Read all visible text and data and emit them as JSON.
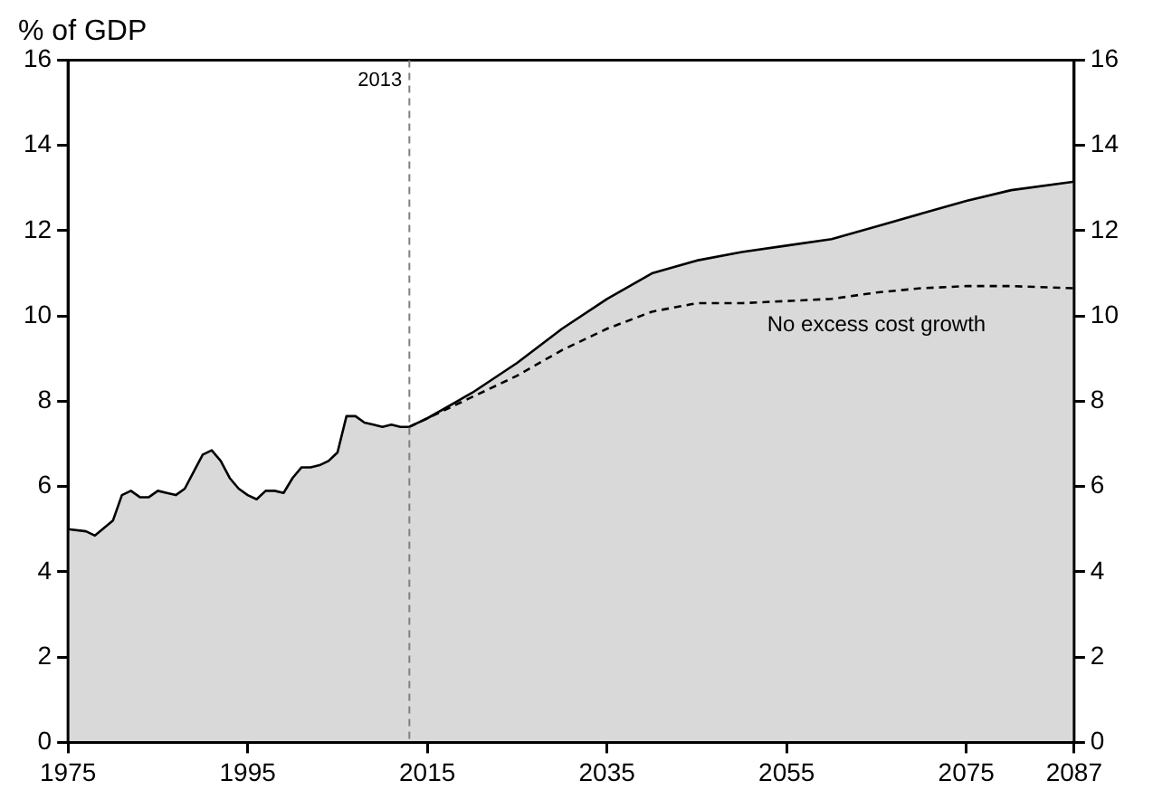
{
  "chart_data": {
    "type": "area",
    "ylabel": "% of GDP",
    "xlim": [
      1975,
      2087
    ],
    "xticks": [
      1975,
      1995,
      2015,
      2035,
      2055,
      2075,
      2087
    ],
    "ylim": [
      0,
      16
    ],
    "yticks": [
      0,
      2,
      4,
      6,
      8,
      10,
      12,
      14,
      16
    ],
    "y2lim": [
      0,
      16
    ],
    "y2ticks": [
      0,
      2,
      4,
      6,
      8,
      10,
      12,
      14,
      16
    ],
    "grid": false,
    "legend": false,
    "series": [
      {
        "color": "#000000",
        "x": [
          1975,
          1977,
          1978,
          1980,
          1981,
          1982,
          1983,
          1984,
          1985,
          1986,
          1987,
          1988,
          1989,
          1990,
          1991,
          1992,
          1993,
          1994,
          1995,
          1996,
          1997,
          1998,
          1999,
          2000,
          2001,
          2002,
          2003,
          2004,
          2005,
          2006,
          2007,
          2008,
          2009,
          2010,
          2011,
          2012,
          2013,
          2015,
          2020,
          2025,
          2030,
          2035,
          2040,
          2045,
          2050,
          2055,
          2060,
          2065,
          2070,
          2075,
          2080,
          2087
        ],
        "values": [
          5.0,
          4.95,
          4.85,
          5.2,
          5.8,
          5.9,
          5.75,
          5.75,
          5.9,
          5.85,
          5.8,
          5.95,
          6.35,
          6.75,
          6.85,
          6.6,
          6.2,
          5.95,
          5.8,
          5.7,
          5.9,
          5.9,
          5.85,
          6.2,
          6.45,
          6.45,
          6.5,
          6.6,
          6.8,
          7.65,
          7.65,
          7.5,
          7.45,
          7.4,
          7.45,
          7.4,
          7.4,
          7.6,
          8.2,
          8.9,
          9.7,
          10.4,
          11.0,
          11.3,
          11.5,
          11.65,
          11.8,
          12.1,
          12.4,
          12.7,
          12.95,
          13.15
        ]
      },
      {
        "type": "line",
        "name": "No excess cost growth",
        "color": "#000000",
        "line_style": "dashed",
        "x": [
          2013,
          2015,
          2020,
          2025,
          2030,
          2035,
          2040,
          2045,
          2050,
          2055,
          2060,
          2065,
          2070,
          2075,
          2080,
          2087
        ],
        "values": [
          7.4,
          7.6,
          8.1,
          8.6,
          9.2,
          9.7,
          10.1,
          10.3,
          10.3,
          10.35,
          10.4,
          10.55,
          10.65,
          10.7,
          10.7,
          10.65
        ]
      }
    ],
    "ref_lines": [
      {
        "axis": "x",
        "value": 2013,
        "label": "2013",
        "color": "#808080",
        "line_style": "dashed"
      }
    ]
  }
}
